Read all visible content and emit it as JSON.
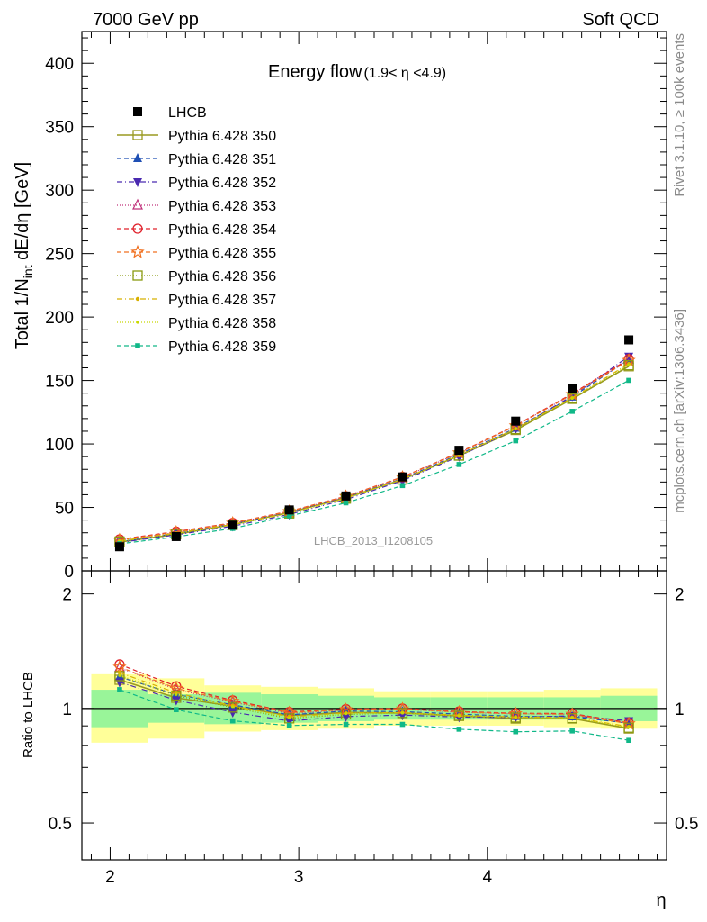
{
  "header": {
    "left": "7000 GeV pp",
    "right": "Soft QCD"
  },
  "side_labels": {
    "rivet": "Rivet 3.1.10, ≥ 100k events",
    "mcplots": "mcplots.cern.ch [arXiv:1306.3436]"
  },
  "chart_data": {
    "type": "line",
    "title": "Energy flow",
    "title_sub": "(1.9< η <4.9)",
    "analysis_label": "LHCB_2013_I1208105",
    "xlabel": "η",
    "ylabel": "Total 1/N",
    "ylabel_sub": "int",
    "ylabel_rest": " dE/dη [GeV]",
    "ratio_ylabel": "Ratio to LHCB",
    "xlim": [
      1.85,
      4.95
    ],
    "ylim": [
      0,
      425
    ],
    "ratio_ylim": [
      0.4,
      2.3
    ],
    "x_ticks": [
      "2",
      "3",
      "4"
    ],
    "y_ticks": [
      "0",
      "50",
      "100",
      "150",
      "200",
      "250",
      "300",
      "350",
      "400"
    ],
    "ratio_ticks": [
      "0.5",
      "1",
      "2"
    ],
    "legend_position": "top-left",
    "x": [
      2.05,
      2.35,
      2.65,
      2.95,
      3.25,
      3.55,
      3.85,
      4.15,
      4.45,
      4.75
    ],
    "data": {
      "name": "LHCB",
      "values": [
        19,
        27,
        36,
        48,
        59,
        74,
        95,
        118,
        144,
        182
      ],
      "band_inner": [
        1.12,
        1.09,
        1.1,
        1.09,
        1.08,
        1.07,
        1.07,
        1.07,
        1.07,
        1.08
      ],
      "band_outer": [
        1.23,
        1.2,
        1.15,
        1.14,
        1.13,
        1.11,
        1.11,
        1.11,
        1.12,
        1.13
      ]
    },
    "series": [
      {
        "name": "Pythia 6.428 350",
        "color": "#9a9a20",
        "marker": "square-open",
        "dash": "",
        "values": [
          22.6,
          28.8,
          36.5,
          46.0,
          57.6,
          72.0,
          90.8,
          111.0,
          135.5,
          161.2
        ]
      },
      {
        "name": "Pythia 6.428 351",
        "color": "#1f4fb4",
        "marker": "triangle-up",
        "dash": "5,3",
        "values": [
          23.0,
          29.4,
          36.8,
          46.2,
          58.1,
          72.6,
          91.8,
          112.5,
          137.0,
          166.5
        ]
      },
      {
        "name": "Pythia 6.428 352",
        "color": "#4a2ab0",
        "marker": "triangle-down",
        "dash": "6,3,1,3",
        "values": [
          22.3,
          28.4,
          35.2,
          44.5,
          56.2,
          71.1,
          90.2,
          111.8,
          137.8,
          169.0
        ]
      },
      {
        "name": "Pythia 6.428 353",
        "color": "#c0307a",
        "marker": "triangle-open",
        "dash": "1,2",
        "values": [
          24.3,
          30.3,
          37.4,
          46.6,
          58.4,
          73.6,
          92.8,
          114.2,
          139.2,
          166.4
        ]
      },
      {
        "name": "Pythia 6.428 354",
        "color": "#e0202a",
        "marker": "circle-open",
        "dash": "5,3",
        "values": [
          24.8,
          30.9,
          37.8,
          47.0,
          58.8,
          74.0,
          93.3,
          114.6,
          139.6,
          166.9
        ]
      },
      {
        "name": "Pythia 6.428 355",
        "color": "#f07020",
        "marker": "star-open",
        "dash": "5,3",
        "values": [
          24.4,
          30.5,
          37.6,
          46.8,
          58.6,
          73.8,
          93.0,
          114.3,
          139.0,
          165.9
        ]
      },
      {
        "name": "Pythia 6.428 356",
        "color": "#8a9a10",
        "marker": "square-open",
        "dash": "1,2",
        "values": [
          23.1,
          29.2,
          36.2,
          45.2,
          56.9,
          72.0,
          90.9,
          111.7,
          135.8,
          162.0
        ]
      },
      {
        "name": "Pythia 6.428 357",
        "color": "#d8b000",
        "marker": "dot",
        "dash": "6,3,1,3",
        "values": [
          23.6,
          29.7,
          36.6,
          45.7,
          57.4,
          72.2,
          91.2,
          112.1,
          136.4,
          163.1
        ]
      },
      {
        "name": "Pythia 6.428 358",
        "color": "#c8d800",
        "marker": "dot-small",
        "dash": "1,2",
        "values": [
          23.2,
          29.4,
          36.4,
          45.4,
          57.2,
          72.0,
          90.8,
          111.8,
          136.0,
          162.4
        ]
      },
      {
        "name": "Pythia 6.428 359",
        "color": "#10b888",
        "marker": "square-small",
        "dash": "5,3",
        "values": [
          21.3,
          26.8,
          33.4,
          43.3,
          53.6,
          67.2,
          83.8,
          102.5,
          125.7,
          150.1
        ]
      }
    ]
  }
}
